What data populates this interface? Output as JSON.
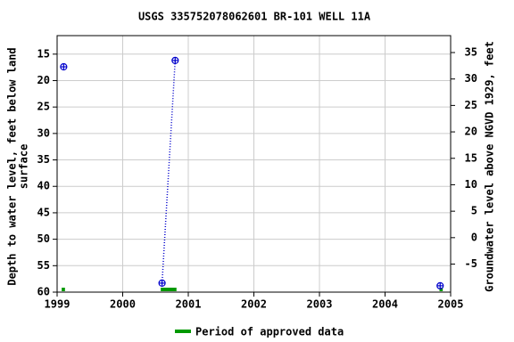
{
  "chart_data": {
    "type": "scatter",
    "title": "USGS 335752078062601 BR-101 WELL 11A",
    "ylabel": [
      "Depth to water level, feet below land",
      "surface"
    ],
    "y2label": "Groundwater level above NGVD 1929, feet",
    "series": [
      {
        "name": "Depth to water level",
        "color": "#0000cc",
        "x": [
          1999.1,
          2000.6,
          2000.8,
          2004.84
        ],
        "values": [
          17.4,
          58.3,
          16.2,
          58.8
        ]
      }
    ],
    "approved_periods": {
      "name": "Period of approved data",
      "color": "#009900",
      "ranges": [
        [
          1999.07,
          1999.12
        ],
        [
          2000.58,
          2000.82
        ],
        [
          2004.83,
          2004.88
        ]
      ]
    },
    "xlim": [
      1999,
      2005
    ],
    "xticks": [
      1999,
      2000,
      2001,
      2002,
      2003,
      2004,
      2005
    ],
    "ylim": [
      11.5,
      60
    ],
    "yticks": [
      15,
      20,
      25,
      30,
      35,
      40,
      45,
      50,
      55,
      60
    ],
    "y2lim": [
      38.2,
      -10.3
    ],
    "y2ticks": [
      35,
      30,
      25,
      20,
      15,
      10,
      5,
      0,
      -5
    ],
    "grid": true
  }
}
